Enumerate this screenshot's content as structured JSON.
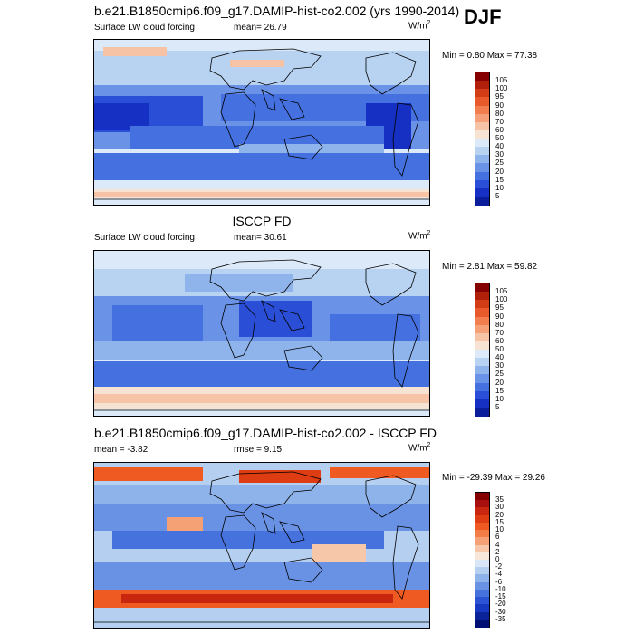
{
  "season": "DJF",
  "panels": [
    {
      "id": "model",
      "title": "b.e21.B1850cmip6.f09_g17.DAMIP-hist-co2.002 (yrs 1990-2014)",
      "left_label": "Surface LW cloud forcing",
      "center_label": "mean=  26.79",
      "units_base": "W/m",
      "units_exp": "2",
      "minmax": "Min =   0.80 Max =  77.38",
      "colorbar": {
        "labels": [
          "105",
          "100",
          "95",
          "90",
          "80",
          "70",
          "60",
          "50",
          "40",
          "30",
          "25",
          "20",
          "15",
          "10",
          "5"
        ],
        "colors": [
          "#850000",
          "#b0200a",
          "#d23c16",
          "#e85a2c",
          "#f27e50",
          "#f6a07a",
          "#f7c3a6",
          "#f6e3d4",
          "#dce9f8",
          "#b8d3f2",
          "#8fb4ec",
          "#6a92e6",
          "#4470e0",
          "#2a4fd6",
          "#1530c2",
          "#0a1d9a"
        ],
        "fill": "model"
      }
    },
    {
      "id": "obs",
      "title": "ISCCP FD",
      "left_label": "Surface LW cloud forcing",
      "center_label": "mean=  30.61",
      "units_base": "W/m",
      "units_exp": "2",
      "minmax": "Min =   2.81 Max =  59.82",
      "colorbar": {
        "labels": [
          "105",
          "100",
          "95",
          "90",
          "80",
          "70",
          "60",
          "50",
          "40",
          "30",
          "25",
          "20",
          "15",
          "10",
          "5"
        ],
        "colors": [
          "#850000",
          "#b0200a",
          "#d23c16",
          "#e85a2c",
          "#f27e50",
          "#f6a07a",
          "#f7c3a6",
          "#f6e3d4",
          "#dce9f8",
          "#b8d3f2",
          "#8fb4ec",
          "#6a92e6",
          "#4470e0",
          "#2a4fd6",
          "#1530c2",
          "#0a1d9a"
        ],
        "fill": "obs"
      }
    },
    {
      "id": "diff",
      "title": "b.e21.B1850cmip6.f09_g17.DAMIP-hist-co2.002 - ISCCP FD",
      "left_label": "mean =  -3.82",
      "center_label": "rmse =   9.15",
      "units_base": "W/m",
      "units_exp": "2",
      "minmax": "Min = -29.39 Max =  29.26",
      "colorbar": {
        "labels": [
          "35",
          "30",
          "20",
          "15",
          "10",
          "6",
          "4",
          "2",
          "0",
          "-2",
          "-4",
          "-6",
          "-10",
          "-15",
          "-20",
          "-30",
          "-35"
        ],
        "colors": [
          "#850000",
          "#a80f0f",
          "#c8260e",
          "#de3c12",
          "#ee5a22",
          "#f47c46",
          "#f6a075",
          "#f7c7aa",
          "#f7e6da",
          "#d9e6f7",
          "#b5cff0",
          "#8eb3ea",
          "#6a92e4",
          "#4672de",
          "#2b53d4",
          "#1738c0",
          "#0b2398",
          "#000f74"
        ],
        "fill": "diff"
      }
    }
  ]
}
